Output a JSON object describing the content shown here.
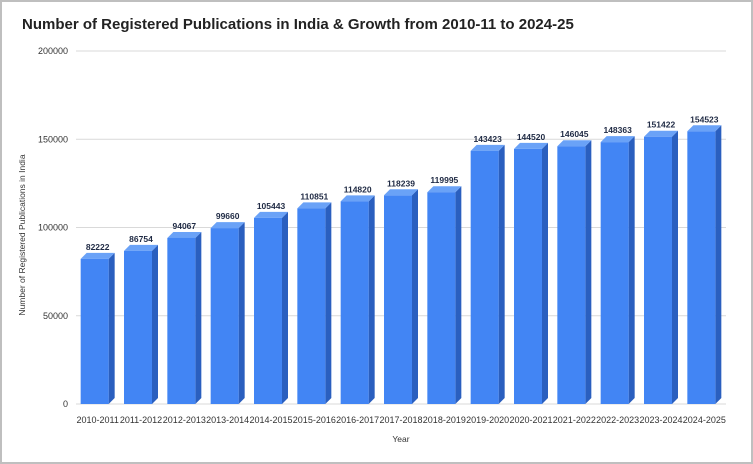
{
  "chart_data": {
    "type": "bar",
    "title": "Number of Registered Publications in India & Growth from 2010-11 to 2024-25",
    "xlabel": "Year",
    "ylabel": "Number of Registered Publications in India",
    "ylim": [
      0,
      200000
    ],
    "yticks": [
      0,
      50000,
      100000,
      150000,
      200000
    ],
    "grid": true,
    "bar_color": "#4285f4",
    "categories": [
      "2010-2011",
      "2011-2012",
      "2012-2013",
      "2013-2014",
      "2014-2015",
      "2015-2016",
      "2016-2017",
      "2017-2018",
      "2018-2019",
      "2019-2020",
      "2020-2021",
      "2021-2022",
      "2022-2023",
      "2023-2024",
      "2024-2025"
    ],
    "values": [
      82222,
      86754,
      94067,
      99660,
      105443,
      110851,
      114820,
      118239,
      119995,
      143423,
      144520,
      146045,
      148363,
      151422,
      154523
    ]
  }
}
